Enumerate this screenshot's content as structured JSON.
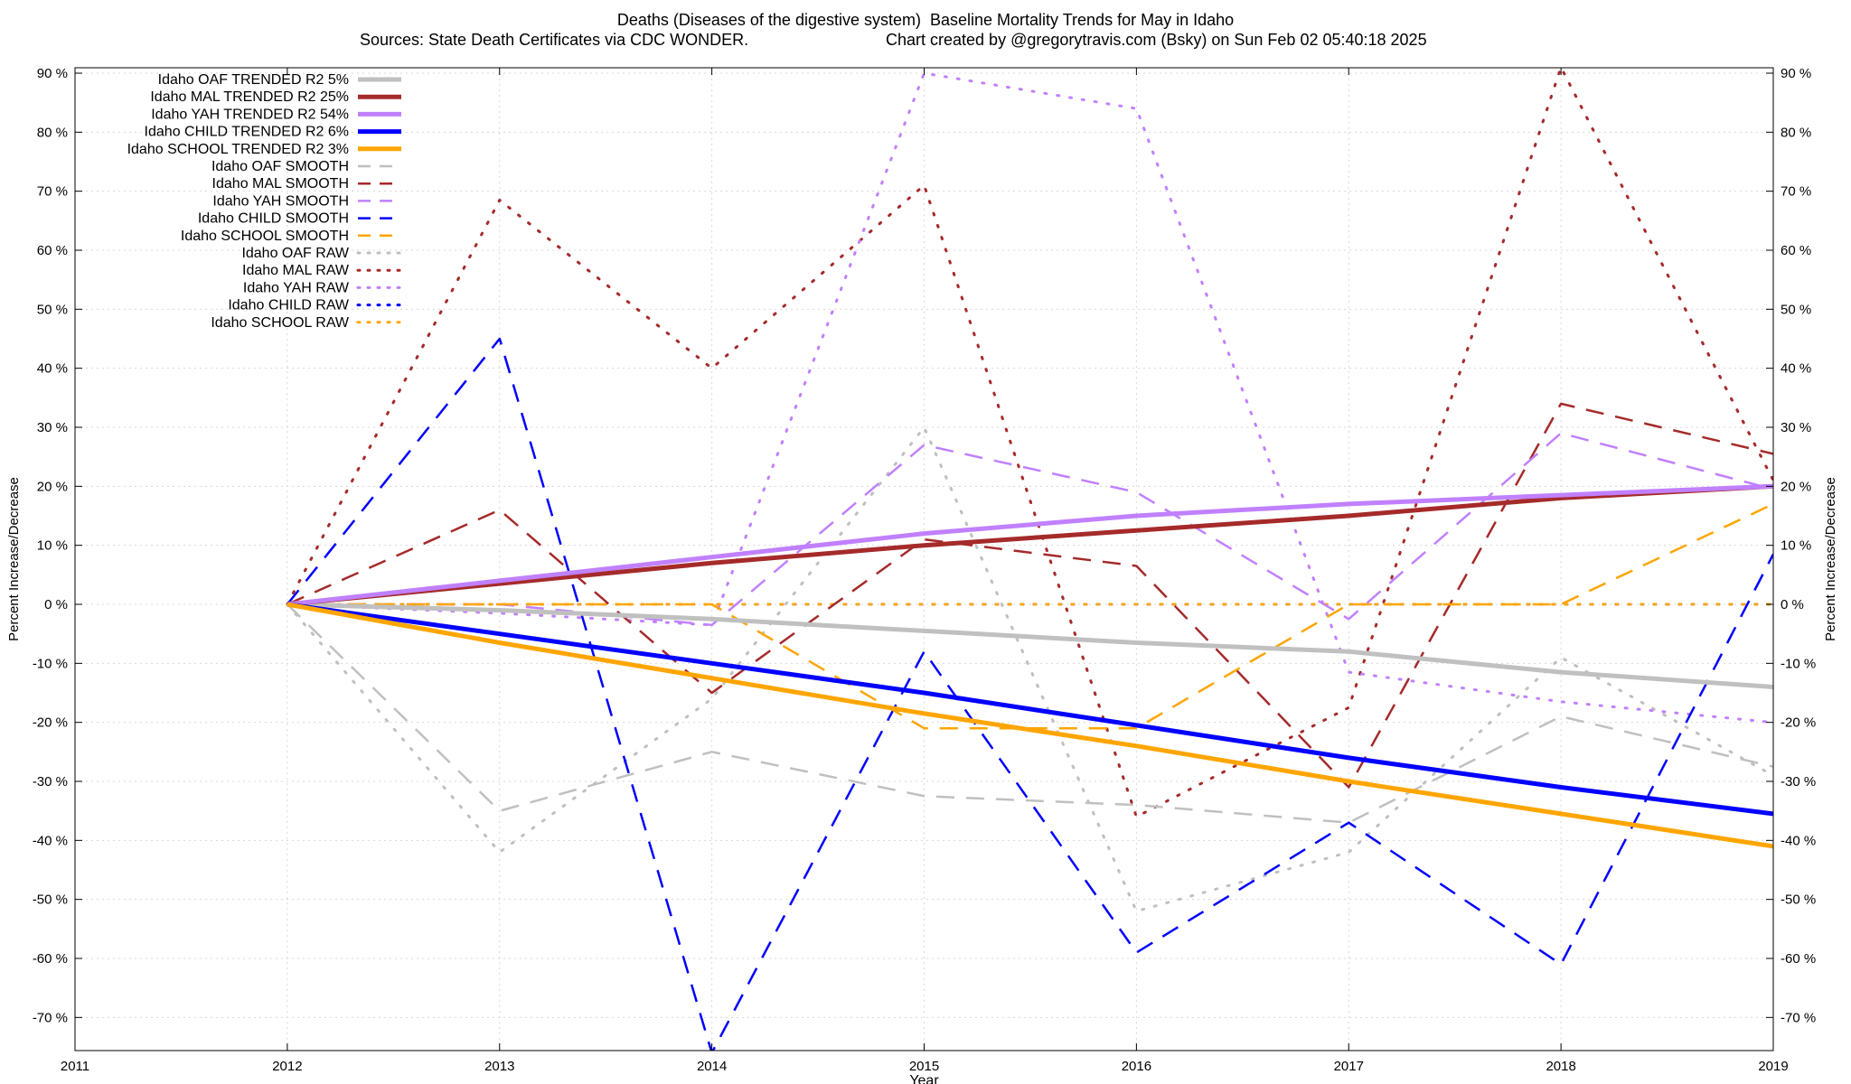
{
  "chart_data": {
    "type": "line",
    "title": "Deaths (Diseases of the digestive system)  Baseline Mortality Trends for May in Idaho",
    "subtitle_left": "Sources: State Death Certificates via CDC WONDER.",
    "subtitle_right": "Chart created by @gregorytravis.com (Bsky) on Sun Feb 02 05:40:18 2025",
    "xlabel": "Year",
    "ylabel": "Percent Increase/Decrease",
    "y2label": "Percent Increase/Decrease",
    "xlim": [
      2011,
      2019
    ],
    "ylim": [
      -76,
      90
    ],
    "x_ticks": [
      "2011",
      "2012",
      "2013",
      "2014",
      "2015",
      "2016",
      "2017",
      "2018",
      "2019"
    ],
    "y_ticks": [
      90,
      80,
      70,
      60,
      50,
      40,
      30,
      20,
      10,
      0,
      -10,
      -20,
      -30,
      -40,
      -50,
      -60,
      -70
    ],
    "y_tick_labels": [
      "90 %",
      "80 %",
      "70 %",
      "60 %",
      "50 %",
      "40 %",
      "30 %",
      "20 %",
      "10 %",
      "0 %",
      "-10 %",
      "-20 %",
      "-30 %",
      "-40 %",
      "-50 %",
      "-60 %",
      "-70 %"
    ],
    "grid": true,
    "legend_position": "top-left",
    "x": [
      2012,
      2013,
      2014,
      2015,
      2016,
      2017,
      2018,
      2019
    ],
    "series": [
      {
        "name": "Idaho OAF TRENDED R2  5%",
        "style": "solid",
        "color": "#c0c0c0",
        "values": [
          0,
          -1,
          -2.5,
          -4.5,
          -6.5,
          -8,
          -11.5,
          -14
        ]
      },
      {
        "name": "Idaho MAL TRENDED R2  25%",
        "style": "solid",
        "color": "#a52a2a",
        "values": [
          0,
          3.5,
          7,
          10,
          12.5,
          15,
          18,
          20
        ]
      },
      {
        "name": "Idaho YAH TRENDED R2  54%",
        "style": "solid",
        "color": "#c080ff",
        "values": [
          0,
          4,
          8,
          12,
          15,
          17,
          18.5,
          20
        ]
      },
      {
        "name": "Idaho CHILD TRENDED R2  6%",
        "style": "solid",
        "color": "#0000ff",
        "values": [
          0,
          -5,
          -10,
          -15,
          -20.5,
          -26,
          -31,
          -35.5
        ]
      },
      {
        "name": "Idaho SCHOOL TRENDED R2  3%",
        "style": "solid",
        "color": "#ffa500",
        "values": [
          0,
          -6.5,
          -12.5,
          -18.5,
          -24,
          -30,
          -35.5,
          -41
        ]
      },
      {
        "name": "Idaho OAF SMOOTH",
        "style": "dashed",
        "color": "#c0c0c0",
        "values": [
          0,
          -35,
          -25,
          -32.5,
          -34,
          -37,
          -19,
          -27.5
        ]
      },
      {
        "name": "Idaho MAL SMOOTH",
        "style": "dashed",
        "color": "#a52a2a",
        "values": [
          0,
          16,
          -15,
          11,
          6.5,
          -31,
          34,
          25.5
        ]
      },
      {
        "name": "Idaho YAH SMOOTH",
        "style": "dashed",
        "color": "#c080ff",
        "values": [
          0,
          0,
          -3.5,
          27,
          19,
          -2.5,
          29,
          19.5
        ]
      },
      {
        "name": "Idaho CHILD SMOOTH",
        "style": "dashed",
        "color": "#0000ff",
        "values": [
          0,
          45,
          -76,
          -8,
          -59,
          -37,
          -61,
          8.5
        ]
      },
      {
        "name": "Idaho SCHOOL SMOOTH",
        "style": "dashed",
        "color": "#ffa500",
        "values": [
          0,
          0,
          0,
          -21,
          -21,
          0,
          0,
          17
        ]
      },
      {
        "name": "Idaho OAF RAW",
        "style": "dotted",
        "color": "#c0c0c0",
        "values": [
          0,
          -42,
          -16,
          30,
          -52,
          -42,
          -9,
          -29
        ]
      },
      {
        "name": "Idaho MAL RAW",
        "style": "dotted",
        "color": "#a52a2a",
        "values": [
          0,
          68.5,
          40,
          71,
          -36,
          -17.5,
          91,
          21
        ]
      },
      {
        "name": "Idaho YAH RAW",
        "style": "dotted",
        "color": "#c080ff",
        "values": [
          0,
          -1.5,
          -3.5,
          90,
          84,
          -11.5,
          -16.5,
          -20
        ]
      },
      {
        "name": "Idaho CHILD RAW",
        "style": "dotted",
        "color": "#0000ff",
        "values": [
          0,
          0,
          0,
          0,
          0,
          0,
          0,
          0
        ]
      },
      {
        "name": "Idaho SCHOOL RAW",
        "style": "dotted",
        "color": "#ffa500",
        "values": [
          0,
          0,
          0,
          0,
          0,
          0,
          0,
          0
        ]
      }
    ]
  }
}
